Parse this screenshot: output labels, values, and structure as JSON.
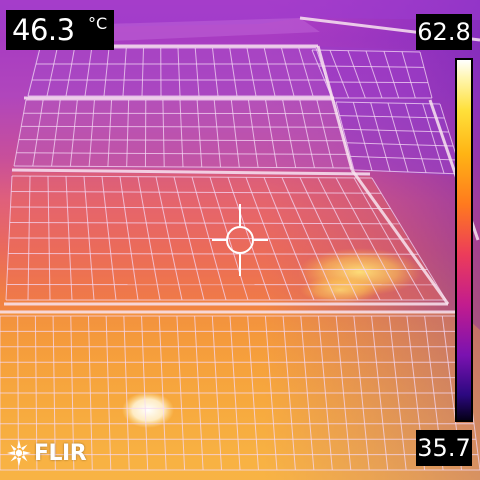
{
  "readout": {
    "value": "46.3",
    "unit": "°C",
    "icon": "crosshair-spot-meter-icon"
  },
  "scale": {
    "max": "62.8",
    "min": "35.7",
    "palette": "iron",
    "colors": [
      "#ffffff",
      "#ffe03a",
      "#ffb414",
      "#ff7a1e",
      "#ec3c5a",
      "#c21c8e",
      "#7a12b0",
      "#2c0880",
      "#050018"
    ]
  },
  "brand": {
    "text": "FLIR",
    "icon": "flir-logo-icon"
  }
}
